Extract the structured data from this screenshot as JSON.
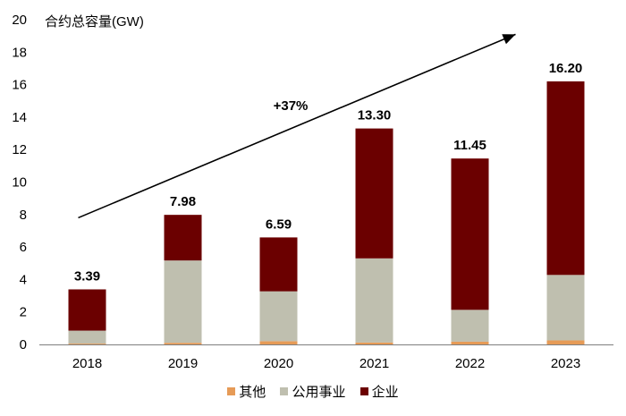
{
  "chart_data": {
    "type": "stacked-bar",
    "title": "",
    "ylabel": "合约总容量(GW)",
    "xlabel": "",
    "ylim": [
      0,
      20
    ],
    "yticks": [
      0,
      2,
      4,
      6,
      8,
      10,
      12,
      14,
      16,
      18,
      20
    ],
    "categories": [
      "2018",
      "2019",
      "2020",
      "2021",
      "2022",
      "2023"
    ],
    "series": [
      {
        "name": "其他",
        "color": "#E69B57",
        "values": [
          0.05,
          0.1,
          0.2,
          0.12,
          0.17,
          0.25
        ]
      },
      {
        "name": "公用事业",
        "color": "#BFBFAF",
        "values": [
          0.8,
          5.07,
          3.07,
          5.18,
          1.96,
          4.03
        ]
      },
      {
        "name": "企业",
        "color": "#6B0000",
        "values": [
          2.54,
          2.81,
          3.32,
          8.0,
          9.32,
          11.92
        ]
      }
    ],
    "totals": [
      "3.39",
      "7.98",
      "6.59",
      "13.30",
      "11.45",
      "16.20"
    ],
    "annotation": {
      "text": "+37%",
      "arrow_from": {
        "category": "2018",
        "value": 7.8
      },
      "arrow_to": {
        "category": "2023",
        "value": 19.1
      }
    },
    "legend_position": "bottom"
  }
}
